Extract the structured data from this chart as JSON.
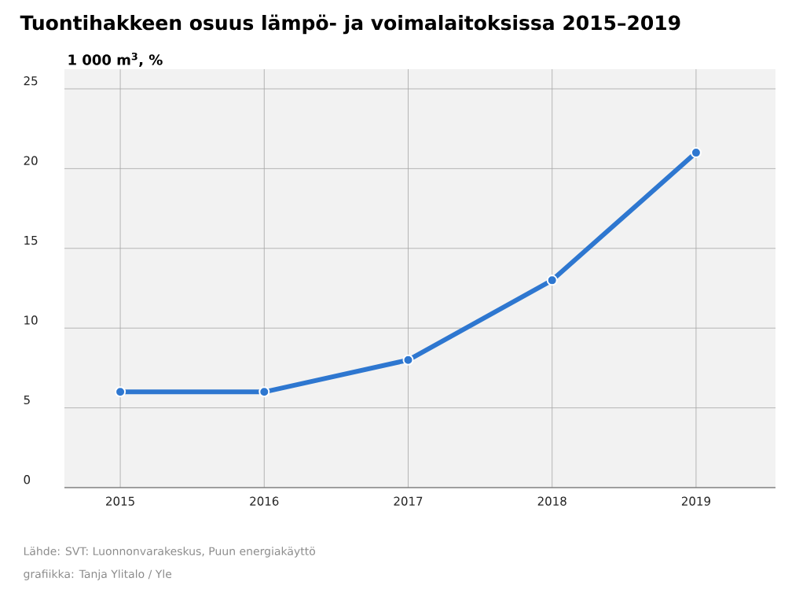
{
  "chart_data": {
    "type": "line",
    "title": "Tuontihakkeen osuus lämpö- ja voimalaitoksissa 2015–2019",
    "ylabel": "1 000 m$^{3}$, %",
    "categories": [
      "2015",
      "2016",
      "2017",
      "2018",
      "2019"
    ],
    "values": [
      6,
      6,
      8,
      13,
      21
    ],
    "color": "#2e77d0",
    "ylim": [
      0,
      25
    ],
    "yticks": [
      0,
      5,
      10,
      15,
      20,
      25
    ],
    "grid": true,
    "marker": "circle",
    "line_style": "solid",
    "annotations": [
      "Lähde: SVT: Luonnonvarakeskus, Puun energiakäyttö",
      "grafiikka: Tanja Ylitalo / Yle"
    ]
  }
}
